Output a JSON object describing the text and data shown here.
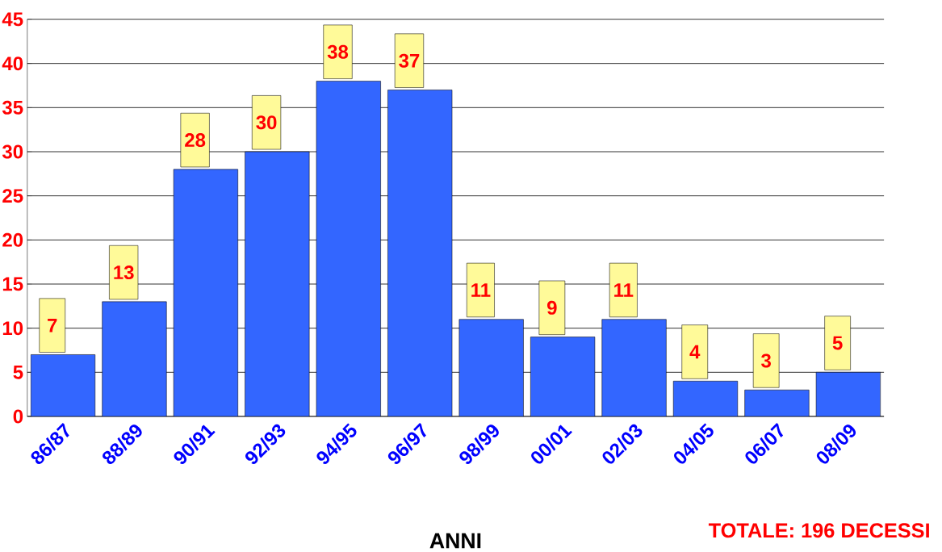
{
  "chart_data": {
    "type": "bar",
    "xlabel": "ANNI",
    "categories": [
      "86/87",
      "88/89",
      "90/91",
      "92/93",
      "94/95",
      "96/97",
      "98/99",
      "00/01",
      "02/03",
      "04/05",
      "06/07",
      "08/09"
    ],
    "values": [
      7,
      13,
      28,
      30,
      38,
      37,
      11,
      9,
      11,
      4,
      3,
      5
    ],
    "value_labels": [
      "7",
      "13",
      "28",
      "30",
      "38",
      "37",
      "11",
      "9",
      "11",
      "4",
      "3",
      "5"
    ],
    "color": "#3366ff",
    "ylim": [
      0,
      45
    ],
    "yticks": [
      0,
      5,
      10,
      15,
      20,
      25,
      30,
      35,
      40,
      45
    ],
    "grid": "y",
    "annotations": [
      "TOTALE: 196  DECESSI"
    ]
  }
}
